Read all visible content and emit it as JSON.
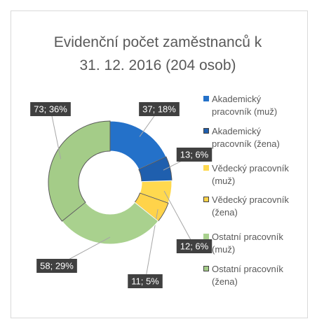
{
  "chart_data": {
    "type": "donut",
    "title": "Evidenční počet zaměstnanců k 31. 12. 2016 (204 osob)",
    "categories": [
      "Akademický pracovník (muž)",
      "Akademický pracovník (žena)",
      "Vědecký pracovník (muž)",
      "Vědecký pracovník (žena)",
      "Ostatní pracovník (muž)",
      "Ostatní pracovník (žena)"
    ],
    "values": [
      37,
      13,
      12,
      11,
      58,
      73
    ],
    "value_labels": [
      "37; 18%",
      "13; 6%",
      "12; 6%",
      "11; 5%",
      "58; 29%",
      "73; 36%"
    ],
    "colors": [
      "#2471c9",
      "#1f5fae",
      "#ffd94f",
      "#ffd34a",
      "#a9d18e",
      "#a4cc88"
    ],
    "legend": "right"
  }
}
